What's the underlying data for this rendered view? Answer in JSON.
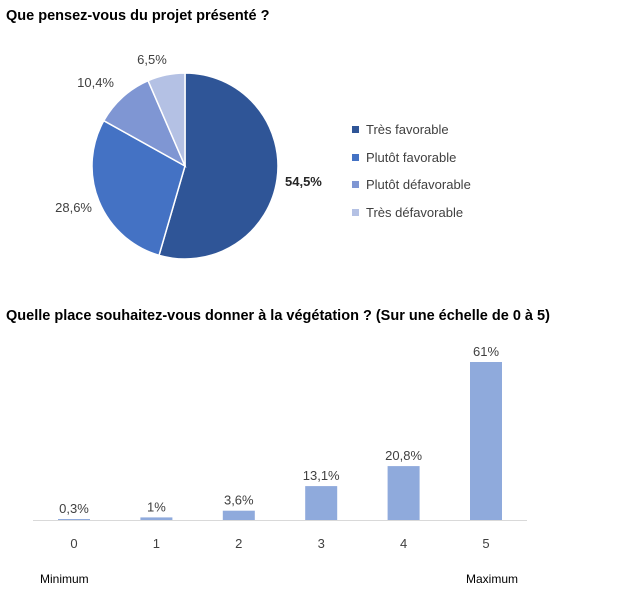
{
  "chart_data": [
    {
      "type": "pie",
      "title": "Que pensez-vous du projet présenté ?",
      "categories": [
        "Très favorable",
        "Plutôt favorable",
        "Plutôt défavorable",
        "Très défavorable"
      ],
      "values": [
        54.5,
        28.6,
        10.4,
        6.5
      ],
      "labels": [
        "54,5%",
        "28,6%",
        "10,4%",
        "6,5%"
      ],
      "colors": [
        "#2F5597",
        "#4472C4",
        "#7F96D3",
        "#B4C1E4"
      ],
      "legend": "right"
    },
    {
      "type": "bar",
      "title": "Quelle place souhaitez-vous donner à la végétation ? (Sur une échelle de 0 à 5)",
      "categories": [
        "0",
        "1",
        "2",
        "3",
        "4",
        "5"
      ],
      "values": [
        0.3,
        1,
        3.6,
        13.1,
        20.8,
        61
      ],
      "labels": [
        "0,3%",
        "1%",
        "3,6%",
        "13,1%",
        "20,8%",
        "61%"
      ],
      "ylim": [
        0,
        61
      ],
      "grid": false,
      "color": "#8FAADC",
      "axis_notes": {
        "min": "Minimum",
        "max": "Maximum"
      }
    }
  ]
}
